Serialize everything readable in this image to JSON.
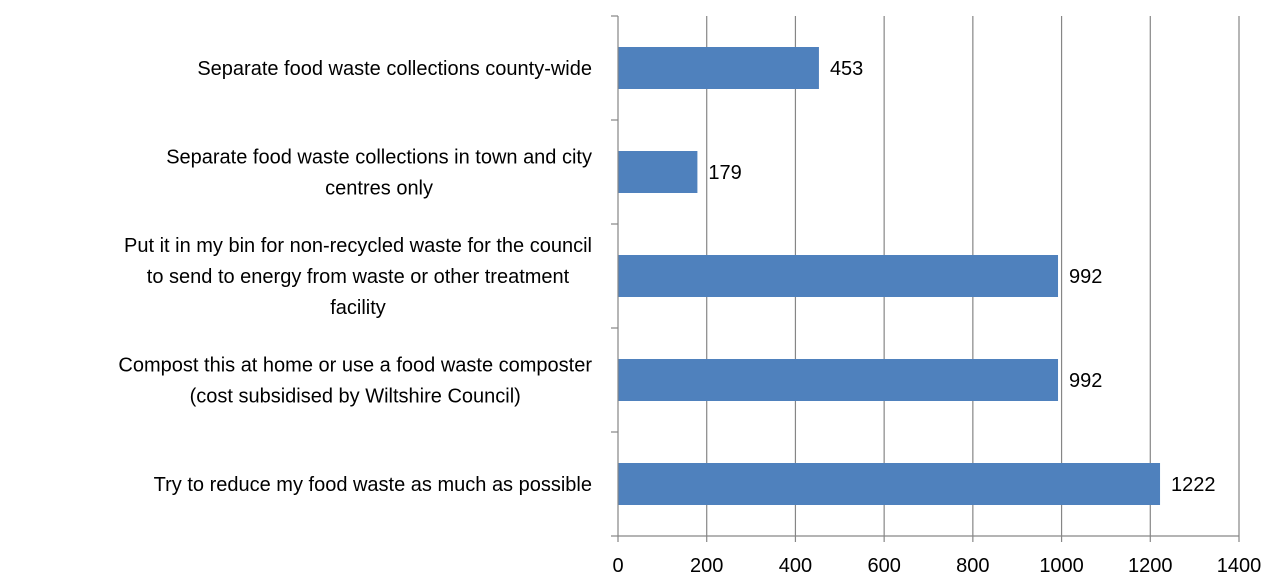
{
  "chart_data": {
    "type": "bar",
    "orientation": "horizontal",
    "categories": [
      "Separate food waste collections county-wide",
      "Separate food waste collections in town and city centres only",
      "Put it in my bin for non-recycled waste for the council to send to energy from waste or other treatment facility",
      "Compost this at home or use a food waste composter (cost subsidised by Wiltshire Council)",
      "Try to reduce my food waste as much as possible"
    ],
    "category_label_lines": [
      [
        "Separate food waste collections county-wide"
      ],
      [
        "Separate food waste collections in town and city",
        "centres only"
      ],
      [
        "Put it in my bin for non-recycled waste for the council",
        "to send to energy from waste or other treatment",
        "facility"
      ],
      [
        "Compost this at home or use a food waste composter",
        "(cost subsidised by Wiltshire Council)"
      ],
      [
        "Try to reduce my food waste as much as possible"
      ]
    ],
    "values": [
      453,
      179,
      992,
      992,
      1222
    ],
    "data_labels": [
      "453",
      "179",
      "992",
      "992",
      "1222"
    ],
    "xlim": [
      0,
      1400
    ],
    "x_ticks": [
      0,
      200,
      400,
      600,
      800,
      1000,
      1200,
      1400
    ],
    "x_tick_labels": [
      "0",
      "200",
      "400",
      "600",
      "800",
      "1000",
      "1200",
      "1400"
    ],
    "title": "",
    "xlabel": "",
    "ylabel": "",
    "grid": "vertical",
    "legend": "none",
    "bar_color": "#4f81bd",
    "grid_color": "#868686"
  }
}
